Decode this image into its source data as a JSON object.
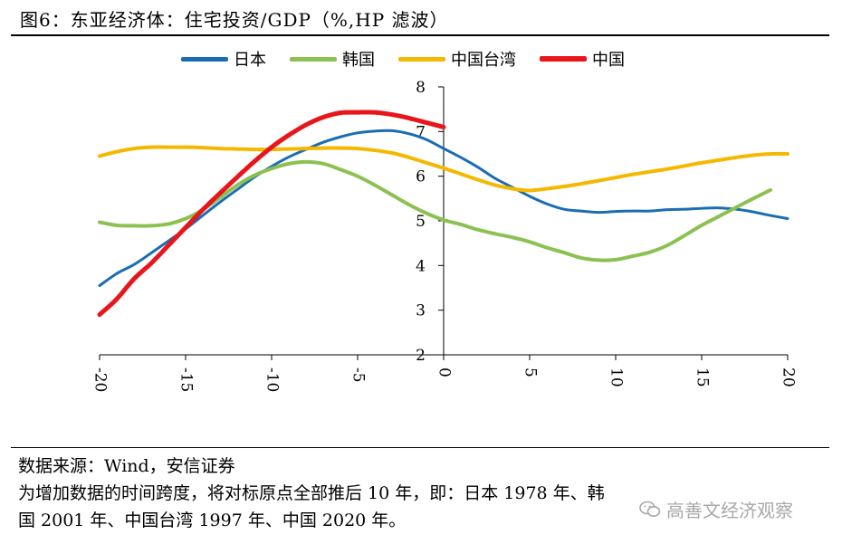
{
  "title": "图6：东亚经济体：住宅投资/GDP（%,HP 滤波）",
  "footer": {
    "source": "数据来源：Wind，安信证券",
    "note_line1": "为增加数据的时间跨度，将对标原点全部推后 10 年，即：日本 1978 年、韩",
    "note_line2": "国 2001 年、中国台湾 1997 年、中国 2020 年。"
  },
  "watermark": "高善文经济观察",
  "watermark_icon": "wechat-icon",
  "chart_data": {
    "type": "line",
    "title": "东亚经济体：住宅投资/GDP（%,HP 滤波）",
    "xlabel": "",
    "ylabel": "",
    "xlim": [
      -20,
      20
    ],
    "ylim": [
      2,
      8
    ],
    "xticks": [
      -20,
      -15,
      -10,
      -5,
      0,
      5,
      10,
      15,
      20
    ],
    "yticks": [
      2,
      3,
      4,
      5,
      6,
      7,
      8
    ],
    "legend_position": "top",
    "series": [
      {
        "name": "日本",
        "color": "#1a6db3",
        "width": 3,
        "x": [
          -20,
          -19,
          -18,
          -17,
          -16,
          -15,
          -14,
          -13,
          -12,
          -11,
          -10,
          -9,
          -8,
          -7,
          -6,
          -5,
          -4,
          -3,
          -2,
          -1,
          0,
          1,
          2,
          3,
          4,
          5,
          6,
          7,
          8,
          9,
          10,
          11,
          12,
          13,
          14,
          15,
          16,
          17,
          18,
          19,
          20
        ],
        "y": [
          3.55,
          3.82,
          4.02,
          4.28,
          4.55,
          4.82,
          5.12,
          5.42,
          5.7,
          5.98,
          6.22,
          6.43,
          6.6,
          6.76,
          6.88,
          6.97,
          7.01,
          7.02,
          6.95,
          6.82,
          6.62,
          6.42,
          6.2,
          5.95,
          5.75,
          5.55,
          5.38,
          5.26,
          5.22,
          5.19,
          5.21,
          5.22,
          5.22,
          5.25,
          5.26,
          5.28,
          5.29,
          5.26,
          5.2,
          5.12,
          5.05
        ]
      },
      {
        "name": "韩国",
        "color": "#8cc152",
        "width": 4,
        "x": [
          -20,
          -19,
          -18,
          -17,
          -16,
          -15,
          -14,
          -13,
          -12,
          -11,
          -10,
          -9,
          -8,
          -7,
          -6,
          -5,
          -4,
          -3,
          -2,
          -1,
          0,
          1,
          2,
          3,
          4,
          5,
          6,
          7,
          8,
          9,
          10,
          11,
          12,
          13,
          14,
          15,
          16,
          17,
          18,
          19
        ],
        "y": [
          4.97,
          4.9,
          4.89,
          4.89,
          4.93,
          5.05,
          5.25,
          5.52,
          5.8,
          6.02,
          6.17,
          6.28,
          6.32,
          6.28,
          6.15,
          6.0,
          5.8,
          5.58,
          5.36,
          5.17,
          5.02,
          4.92,
          4.8,
          4.71,
          4.63,
          4.53,
          4.4,
          4.29,
          4.17,
          4.12,
          4.13,
          4.21,
          4.3,
          4.45,
          4.67,
          4.9,
          5.1,
          5.3,
          5.5,
          5.69
        ]
      },
      {
        "name": "中国台湾",
        "color": "#f5b800",
        "width": 4,
        "x": [
          -20,
          -19,
          -18,
          -17,
          -16,
          -15,
          -14,
          -13,
          -12,
          -11,
          -10,
          -9,
          -8,
          -7,
          -6,
          -5,
          -4,
          -3,
          -2,
          -1,
          0,
          1,
          2,
          3,
          4,
          5,
          6,
          7,
          8,
          9,
          10,
          11,
          12,
          13,
          14,
          15,
          16,
          17,
          18,
          19,
          20
        ],
        "y": [
          6.45,
          6.55,
          6.62,
          6.65,
          6.65,
          6.65,
          6.64,
          6.62,
          6.61,
          6.6,
          6.6,
          6.61,
          6.62,
          6.63,
          6.63,
          6.62,
          6.58,
          6.52,
          6.42,
          6.3,
          6.18,
          6.05,
          5.92,
          5.8,
          5.72,
          5.68,
          5.72,
          5.77,
          5.83,
          5.9,
          5.97,
          6.04,
          6.1,
          6.16,
          6.23,
          6.3,
          6.36,
          6.42,
          6.47,
          6.5,
          6.5
        ]
      },
      {
        "name": "中国",
        "color": "#e8161c",
        "width": 5,
        "x": [
          -20,
          -19,
          -18,
          -17,
          -16,
          -15,
          -14,
          -13,
          -12,
          -11,
          -10,
          -9,
          -8,
          -7,
          -6,
          -5,
          -4,
          -3,
          -2,
          -1,
          0
        ],
        "y": [
          2.9,
          3.25,
          3.7,
          4.05,
          4.45,
          4.85,
          5.25,
          5.62,
          5.98,
          6.33,
          6.65,
          6.92,
          7.15,
          7.32,
          7.42,
          7.43,
          7.43,
          7.38,
          7.3,
          7.2,
          7.1
        ]
      }
    ]
  }
}
